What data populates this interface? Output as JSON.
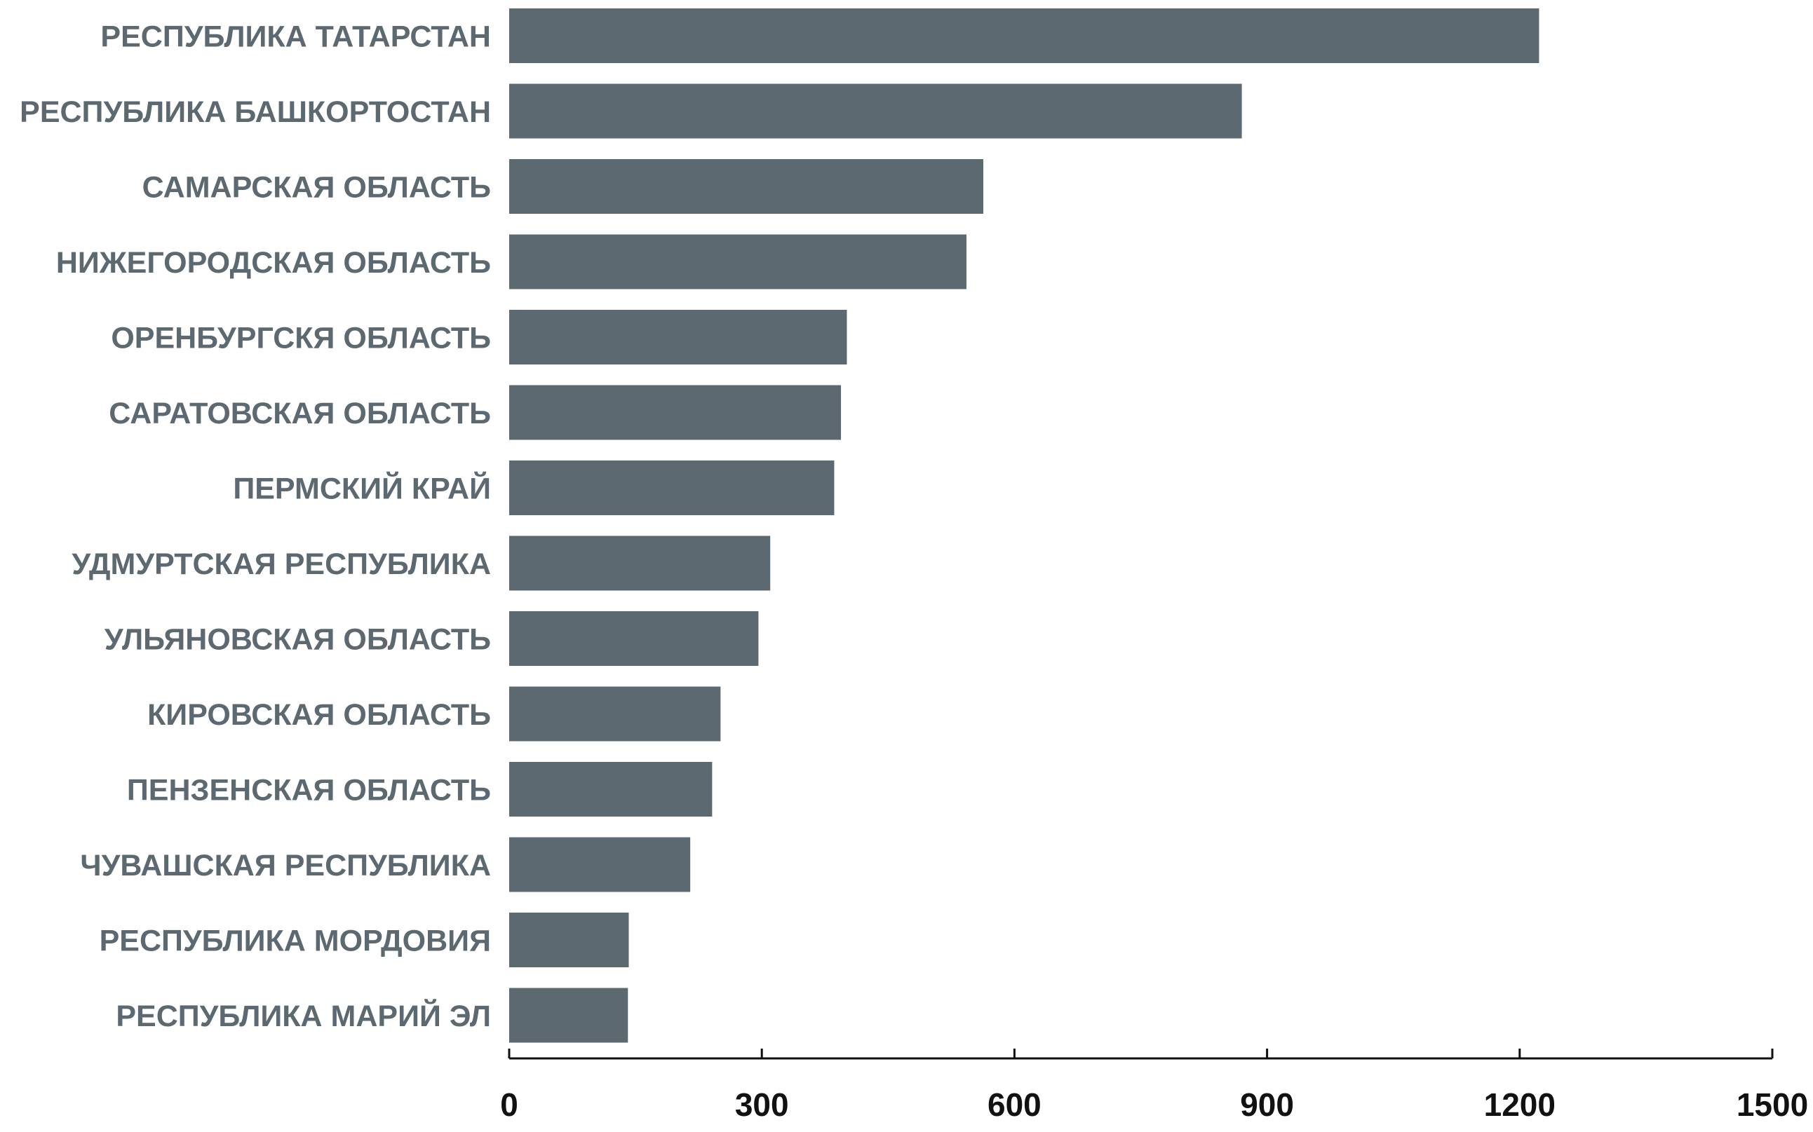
{
  "chart_data": {
    "type": "bar",
    "orientation": "horizontal",
    "categories": [
      "РЕСПУБЛИКА ТАТАРСТАН",
      "РЕСПУБЛИКА БАШКОРТОСТАН",
      "САМАРСКАЯ ОБЛАСТЬ",
      "НИЖЕГОРОДСКАЯ ОБЛАСТЬ",
      "ОРЕНБУРГСКЯ ОБЛАСТЬ",
      "САРАТОВСКАЯ ОБЛАСТЬ",
      "ПЕРМСКИЙ КРАЙ",
      "УДМУРТСКАЯ РЕСПУБЛИКА",
      "УЛЬЯНОВСКАЯ ОБЛАСТЬ",
      "КИРОВСКАЯ ОБЛАСТЬ",
      "ПЕНЗЕНСКАЯ ОБЛАСТЬ",
      "ЧУВАШСКАЯ РЕСПУБЛИКА",
      "РЕСПУБЛИКА МОРДОВИЯ",
      "РЕСПУБЛИКА МАРИЙ ЭЛ"
    ],
    "values": [
      1223,
      870,
      563,
      543,
      401,
      394,
      386,
      310,
      296,
      251,
      241,
      215,
      142,
      141
    ],
    "color": "#5c6970",
    "xlim": [
      0,
      1500
    ],
    "xticks": [
      0,
      300,
      600,
      900,
      1200,
      1500
    ],
    "grid": false
  }
}
